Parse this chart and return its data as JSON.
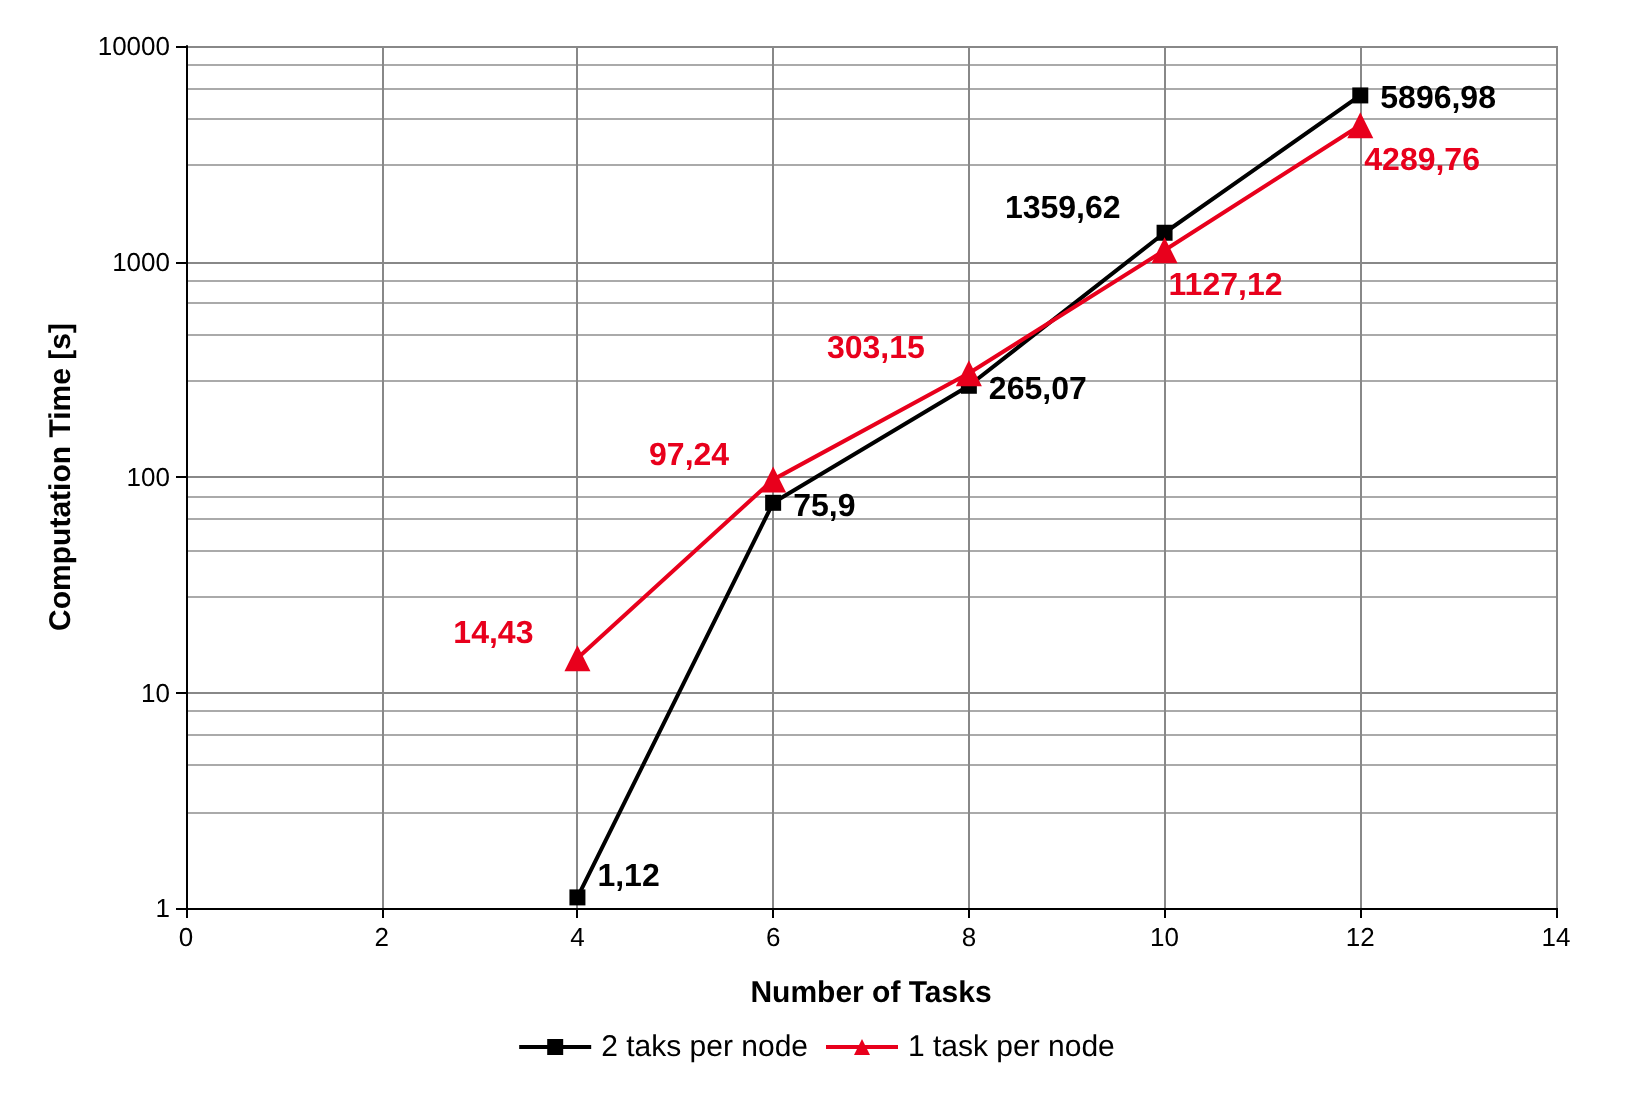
{
  "chart_data": {
    "type": "line",
    "xlabel": "Number of Tasks",
    "ylabel": "Computation Time [s]",
    "x": [
      4,
      6,
      8,
      10,
      12
    ],
    "series": [
      {
        "name": "2 taks per node",
        "color": "#000000",
        "marker": "square",
        "values": [
          1.12,
          75.9,
          265.07,
          1359.62,
          5896.98
        ],
        "value_labels": [
          "1,12",
          "75,9",
          "265,07",
          "1359,62",
          "5896,98"
        ]
      },
      {
        "name": "1 task per node",
        "color": "#e8001c",
        "marker": "triangle",
        "values": [
          14.43,
          97.24,
          303.15,
          1127.12,
          4289.76
        ],
        "value_labels": [
          "14,43",
          "97,24",
          "303,15",
          "1127,12",
          "4289,76"
        ]
      }
    ],
    "xlim": [
      0,
      14
    ],
    "xticks": [
      0,
      2,
      4,
      6,
      8,
      10,
      12,
      14
    ],
    "ylim": [
      1,
      10000
    ],
    "yticks": [
      1,
      10,
      100,
      1000,
      10000
    ],
    "log": "y",
    "grid": true,
    "legend": "bottom",
    "line_style": "solid"
  }
}
